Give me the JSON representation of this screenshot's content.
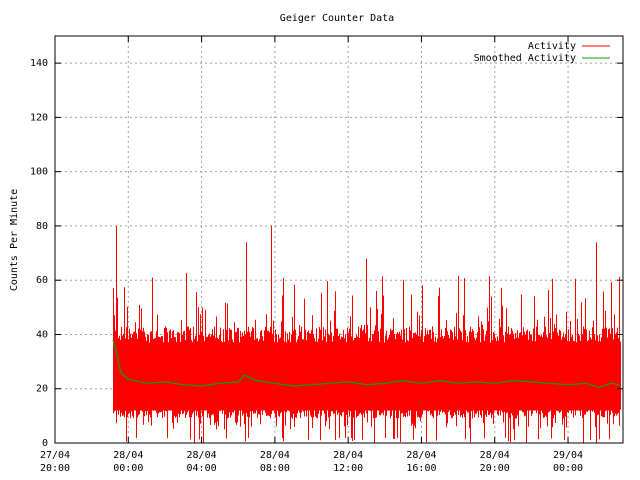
{
  "chart_data": {
    "type": "line",
    "title": "Geiger Counter Data",
    "xlabel": "",
    "ylabel": "Counts Per Minute",
    "ylim": [
      0,
      150
    ],
    "yticks": [
      0,
      20,
      40,
      60,
      80,
      100,
      120,
      140
    ],
    "xlim": [
      "27/04 20:00",
      "29/04 03:00"
    ],
    "xticks": [
      {
        "top": "27/04",
        "bottom": "20:00"
      },
      {
        "top": "28/04",
        "bottom": "00:00"
      },
      {
        "top": "28/04",
        "bottom": "04:00"
      },
      {
        "top": "28/04",
        "bottom": "08:00"
      },
      {
        "top": "28/04",
        "bottom": "12:00"
      },
      {
        "top": "28/04",
        "bottom": "16:00"
      },
      {
        "top": "28/04",
        "bottom": "20:00"
      },
      {
        "top": "29/04",
        "bottom": "00:00"
      }
    ],
    "grid": true,
    "legend_position": "top-right",
    "series": [
      {
        "name": "Activity",
        "color": "#ff0000",
        "style": "noisy per-minute counts",
        "start": "27/04 23:10",
        "end": "29/04 02:50",
        "typical_range": [
          11,
          40
        ],
        "min": 0,
        "max": 80,
        "peaks": [
          {
            "x": "27/04 23:20",
            "y": 80
          },
          {
            "x": "28/04 06:24",
            "y": 74
          },
          {
            "x": "28/04 07:48",
            "y": 80
          },
          {
            "x": "28/04 13:00",
            "y": 68
          },
          {
            "x": "29/04 01:30",
            "y": 74
          }
        ]
      },
      {
        "name": "Smoothed Activity",
        "color": "#00aa00",
        "points": [
          {
            "x": "27/04 23:10",
            "y": 38
          },
          {
            "x": "27/04 23:20",
            "y": 34
          },
          {
            "x": "27/04 23:35",
            "y": 26
          },
          {
            "x": "28/04 00:00",
            "y": 23.5
          },
          {
            "x": "28/04 01:00",
            "y": 22
          },
          {
            "x": "28/04 02:00",
            "y": 22.5
          },
          {
            "x": "28/04 03:00",
            "y": 21.5
          },
          {
            "x": "28/04 04:00",
            "y": 21
          },
          {
            "x": "28/04 05:00",
            "y": 22
          },
          {
            "x": "28/04 06:00",
            "y": 22.5
          },
          {
            "x": "28/04 06:20",
            "y": 25
          },
          {
            "x": "28/04 07:00",
            "y": 23
          },
          {
            "x": "28/04 08:00",
            "y": 22
          },
          {
            "x": "28/04 09:00",
            "y": 21
          },
          {
            "x": "28/04 10:00",
            "y": 21.5
          },
          {
            "x": "28/04 11:00",
            "y": 22
          },
          {
            "x": "28/04 12:00",
            "y": 22.5
          },
          {
            "x": "28/04 13:00",
            "y": 21.5
          },
          {
            "x": "28/04 14:00",
            "y": 22
          },
          {
            "x": "28/04 15:00",
            "y": 23
          },
          {
            "x": "28/04 16:00",
            "y": 22
          },
          {
            "x": "28/04 17:00",
            "y": 23
          },
          {
            "x": "28/04 18:00",
            "y": 22
          },
          {
            "x": "28/04 19:00",
            "y": 22.5
          },
          {
            "x": "28/04 20:00",
            "y": 22
          },
          {
            "x": "28/04 21:00",
            "y": 23
          },
          {
            "x": "28/04 22:00",
            "y": 22.5
          },
          {
            "x": "28/04 23:00",
            "y": 22
          },
          {
            "x": "29/04 00:00",
            "y": 21.5
          },
          {
            "x": "29/04 01:00",
            "y": 22
          },
          {
            "x": "29/04 01:40",
            "y": 20.5
          },
          {
            "x": "29/04 02:20",
            "y": 22
          },
          {
            "x": "29/04 02:50",
            "y": 21.5
          }
        ]
      }
    ]
  }
}
